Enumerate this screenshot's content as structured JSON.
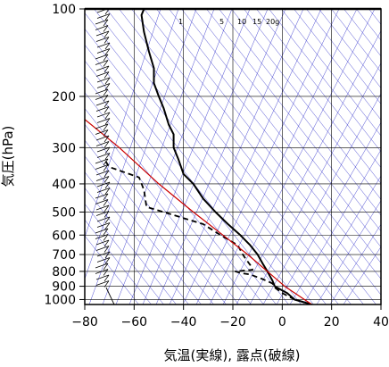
{
  "chart_data": {
    "type": "line",
    "subtype": "skew-T log-P thermodynamic diagram",
    "xlabel": "気温(実線), 露点(破線)",
    "ylabel": "気圧(hPa)",
    "xlim": [
      -80,
      40
    ],
    "ylim": [
      1040,
      100
    ],
    "y_scale": "log",
    "x_ticks": [
      "−80",
      "−60",
      "−40",
      "−20",
      "0",
      "20",
      "40"
    ],
    "x_tick_values": [
      -80,
      -60,
      -40,
      -20,
      0,
      20,
      40
    ],
    "y_ticks": [
      "100",
      "200",
      "300",
      "400",
      "500",
      "600",
      "700",
      "800",
      "900",
      "1000"
    ],
    "y_tick_values": [
      100,
      200,
      300,
      400,
      500,
      600,
      700,
      800,
      900,
      1000
    ],
    "mixing_ratio_labels": [
      "1",
      "5",
      "10",
      "15",
      "20g"
    ],
    "mixing_ratio_values": [
      1,
      5,
      10,
      15,
      20
    ],
    "colors": {
      "temperature": "#000000",
      "dewpoint": "#000000",
      "parcel": "#cc0000",
      "adiabats": "#3333cc",
      "grid": "#000000"
    },
    "series": [
      {
        "style": "solid",
        "points": [
          [
            1040,
            12
          ],
          [
            1000,
            5
          ],
          [
            950,
            2
          ],
          [
            920,
            -1
          ],
          [
            900,
            -3
          ],
          [
            860,
            -4
          ],
          [
            830,
            -5
          ],
          [
            800,
            -6
          ],
          [
            750,
            -8
          ],
          [
            700,
            -10
          ],
          [
            650,
            -13
          ],
          [
            600,
            -17
          ],
          [
            550,
            -22
          ],
          [
            500,
            -27
          ],
          [
            450,
            -32
          ],
          [
            400,
            -36
          ],
          [
            370,
            -40
          ],
          [
            330,
            -42
          ],
          [
            300,
            -44
          ],
          [
            270,
            -44
          ],
          [
            250,
            -46
          ],
          [
            220,
            -48
          ],
          [
            200,
            -50
          ],
          [
            180,
            -52
          ],
          [
            160,
            -52
          ],
          [
            140,
            -54
          ],
          [
            120,
            -56
          ],
          [
            105,
            -57
          ],
          [
            100,
            -56
          ]
        ]
      },
      {
        "style": "dashed",
        "points": [
          [
            1040,
            12
          ],
          [
            1000,
            5
          ],
          [
            950,
            0
          ],
          [
            910,
            -3
          ],
          [
            880,
            -4
          ],
          [
            850,
            -8
          ],
          [
            820,
            -13
          ],
          [
            810,
            -17
          ],
          [
            800,
            -19
          ],
          [
            790,
            -12
          ],
          [
            760,
            -13
          ],
          [
            720,
            -15
          ],
          [
            700,
            -16
          ],
          [
            650,
            -18
          ],
          [
            600,
            -25
          ],
          [
            550,
            -32
          ],
          [
            500,
            -48
          ],
          [
            480,
            -55
          ],
          [
            420,
            -56
          ],
          [
            380,
            -58
          ],
          [
            350,
            -70
          ],
          [
            330,
            -72
          ]
        ]
      },
      {
        "style": "solid",
        "points": [
          [
            1040,
            12
          ],
          [
            900,
            1
          ],
          [
            800,
            -6
          ],
          [
            700,
            -14
          ],
          [
            600,
            -24
          ],
          [
            500,
            -36
          ],
          [
            400,
            -50
          ],
          [
            300,
            -66
          ],
          [
            240,
            -80
          ]
        ]
      }
    ],
    "grid": true,
    "legend": "none"
  }
}
